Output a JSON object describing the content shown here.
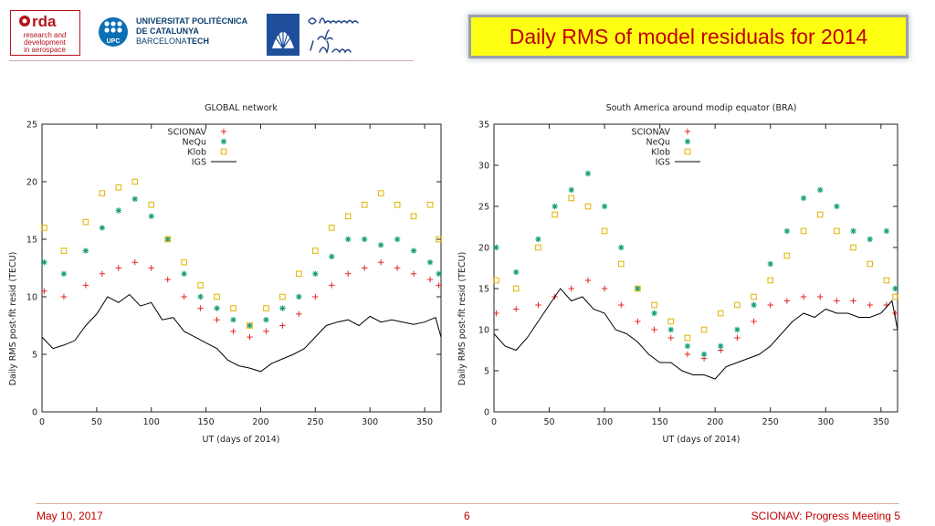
{
  "header": {
    "logo_gage": {
      "icon": "gage-logo",
      "lines": [
        "research and",
        "development",
        "in aerospace"
      ],
      "mark": "rda"
    },
    "logo_upc": {
      "icon": "upc-logo",
      "mark": "UPC",
      "name_lines": [
        "UNIVERSITAT POLITÈCNICA",
        "DE CATALUNYA"
      ],
      "sub_thin": "BARCELONA",
      "sub_bold": "TECH"
    },
    "logo_ebre": {
      "icon": "observatori-ebre-logo"
    }
  },
  "slide_title": "Daily RMS of model residuals for 2014",
  "colors": {
    "title_bg": "#ffff14",
    "title_text": "#c00000",
    "scionav": "#e62727",
    "nequ": "#17a07a",
    "klob": "#e2b300",
    "igs": "#000000"
  },
  "chart_data": [
    {
      "type": "scatter",
      "title": "GLOBAL network",
      "xlabel": "UT (days of 2014)",
      "ylabel": "Daily RMS post-fit resid (TECU)",
      "xlim": [
        0,
        365
      ],
      "ylim": [
        0,
        25
      ],
      "xticks": [
        0,
        50,
        100,
        150,
        200,
        250,
        300,
        350
      ],
      "yticks": [
        0,
        5,
        10,
        15,
        20,
        25
      ],
      "legend_position": "top-center",
      "series": [
        {
          "name": "SCIONAV",
          "marker": "+",
          "color": "#e62727",
          "x": [
            2,
            20,
            40,
            55,
            70,
            85,
            100,
            115,
            130,
            145,
            160,
            175,
            190,
            205,
            220,
            235,
            250,
            265,
            280,
            295,
            310,
            325,
            340,
            355,
            363
          ],
          "y": [
            10.5,
            10,
            11,
            12,
            12.5,
            13,
            12.5,
            11.5,
            10,
            9,
            8,
            7,
            6.5,
            7,
            7.5,
            8.5,
            10,
            11,
            12,
            12.5,
            13,
            12.5,
            12,
            11.5,
            11
          ]
        },
        {
          "name": "NeQu",
          "marker": "*",
          "color": "#17a07a",
          "x": [
            2,
            20,
            40,
            55,
            70,
            85,
            100,
            115,
            130,
            145,
            160,
            175,
            190,
            205,
            220,
            235,
            250,
            265,
            280,
            295,
            310,
            325,
            340,
            355,
            363
          ],
          "y": [
            13,
            12,
            14,
            16,
            17.5,
            18.5,
            17,
            15,
            12,
            10,
            9,
            8,
            7.5,
            8,
            9,
            10,
            12,
            13.5,
            15,
            15,
            14.5,
            15,
            14,
            13,
            12
          ]
        },
        {
          "name": "Klob",
          "marker": "square",
          "color": "#e2b300",
          "x": [
            2,
            20,
            40,
            55,
            70,
            85,
            100,
            115,
            130,
            145,
            160,
            175,
            190,
            205,
            220,
            235,
            250,
            265,
            280,
            295,
            310,
            325,
            340,
            355,
            363
          ],
          "y": [
            16,
            14,
            16.5,
            19,
            19.5,
            20,
            18,
            15,
            13,
            11,
            10,
            9,
            7.5,
            9,
            10,
            12,
            14,
            16,
            17,
            18,
            19,
            18,
            17,
            18,
            15
          ]
        },
        {
          "name": "IGS",
          "marker": "line",
          "color": "#000000",
          "x": [
            0,
            10,
            20,
            30,
            40,
            50,
            60,
            70,
            80,
            90,
            100,
            110,
            120,
            130,
            140,
            150,
            160,
            170,
            180,
            190,
            200,
            210,
            220,
            230,
            240,
            250,
            260,
            270,
            280,
            290,
            300,
            310,
            320,
            330,
            340,
            350,
            360,
            365
          ],
          "y": [
            6.5,
            5.5,
            5.8,
            6.2,
            7.5,
            8.5,
            10,
            9.5,
            10.2,
            9.2,
            9.5,
            8,
            8.2,
            7,
            6.5,
            6,
            5.5,
            4.5,
            4,
            3.8,
            3.5,
            4.2,
            4.6,
            5,
            5.5,
            6.5,
            7.5,
            7.8,
            8,
            7.5,
            8.3,
            7.8,
            8,
            7.8,
            7.6,
            7.8,
            8.2,
            6.5
          ]
        }
      ]
    },
    {
      "type": "scatter",
      "title": "South America around modip equator (BRA)",
      "xlabel": "UT (days of 2014)",
      "ylabel": "Daily RMS post-fit resid (TECU)",
      "xlim": [
        0,
        365
      ],
      "ylim": [
        0,
        35
      ],
      "xticks": [
        0,
        50,
        100,
        150,
        200,
        250,
        300,
        350
      ],
      "yticks": [
        0,
        5,
        10,
        15,
        20,
        25,
        30,
        35
      ],
      "legend_position": "top-center",
      "series": [
        {
          "name": "SCIONAV",
          "marker": "+",
          "color": "#e62727",
          "x": [
            2,
            20,
            40,
            55,
            70,
            85,
            100,
            115,
            130,
            145,
            160,
            175,
            190,
            205,
            220,
            235,
            250,
            265,
            280,
            295,
            310,
            325,
            340,
            355,
            363
          ],
          "y": [
            12,
            12.5,
            13,
            14,
            15,
            16,
            15,
            13,
            11,
            10,
            9,
            7,
            6.5,
            7.5,
            9,
            11,
            13,
            13.5,
            14,
            14,
            13.5,
            13.5,
            13,
            13,
            12
          ]
        },
        {
          "name": "NeQu",
          "marker": "*",
          "color": "#17a07a",
          "x": [
            2,
            20,
            40,
            55,
            70,
            85,
            100,
            115,
            130,
            145,
            160,
            175,
            190,
            205,
            220,
            235,
            250,
            265,
            280,
            295,
            310,
            325,
            340,
            355,
            363
          ],
          "y": [
            20,
            17,
            21,
            25,
            27,
            29,
            25,
            20,
            15,
            12,
            10,
            8,
            7,
            8,
            10,
            13,
            18,
            22,
            26,
            27,
            25,
            22,
            21,
            22,
            15
          ]
        },
        {
          "name": "Klob",
          "marker": "square",
          "color": "#e2b300",
          "x": [
            2,
            20,
            40,
            55,
            70,
            85,
            100,
            115,
            130,
            145,
            160,
            175,
            190,
            205,
            220,
            235,
            250,
            265,
            280,
            295,
            310,
            325,
            340,
            355,
            363
          ],
          "y": [
            16,
            15,
            20,
            24,
            26,
            25,
            22,
            18,
            15,
            13,
            11,
            9,
            10,
            12,
            13,
            14,
            16,
            19,
            22,
            24,
            22,
            20,
            18,
            16,
            14
          ]
        },
        {
          "name": "IGS",
          "marker": "line",
          "color": "#000000",
          "x": [
            0,
            10,
            20,
            30,
            40,
            50,
            60,
            70,
            80,
            90,
            100,
            110,
            120,
            130,
            140,
            150,
            160,
            170,
            180,
            190,
            200,
            210,
            220,
            230,
            240,
            250,
            260,
            270,
            280,
            290,
            300,
            310,
            320,
            330,
            340,
            350,
            360,
            365
          ],
          "y": [
            9.5,
            8,
            7.5,
            9,
            11,
            13,
            15,
            13.5,
            14,
            12.5,
            12,
            10,
            9.5,
            8.5,
            7,
            6,
            6,
            5,
            4.5,
            4.5,
            4,
            5.5,
            6,
            6.5,
            7,
            8,
            9.5,
            11,
            12,
            11.5,
            12.5,
            12,
            12,
            11.5,
            11.5,
            12,
            13.5,
            10
          ]
        }
      ]
    }
  ],
  "footer": {
    "date": "May 10, 2017",
    "page": "6",
    "event": "SCIONAV: Progress Meeting 5"
  }
}
